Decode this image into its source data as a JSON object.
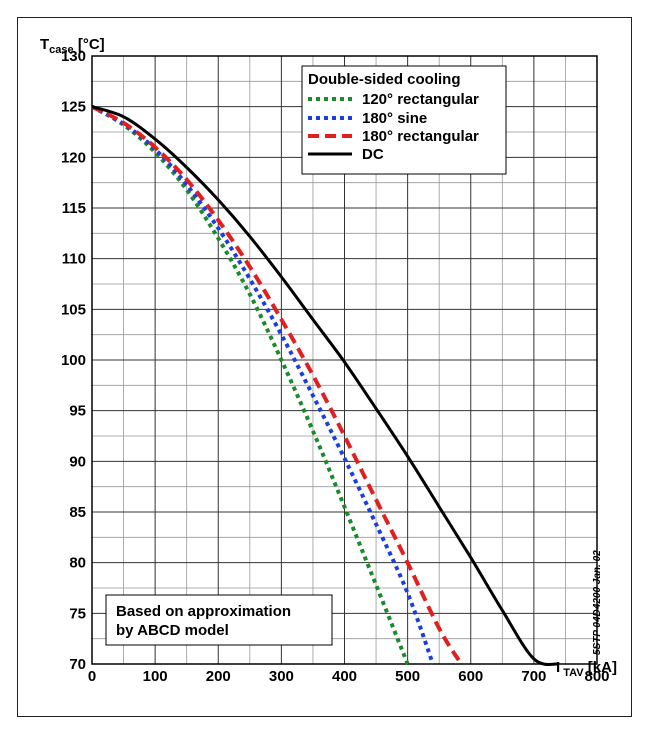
{
  "chart_data": {
    "type": "line",
    "y_axis_label": {
      "main": "T",
      "sub": "case",
      "unit": " [°C]"
    },
    "x_axis_label": {
      "main": "I",
      "sub": " TAV",
      "unit": " [kA]"
    },
    "xlim": [
      0,
      800
    ],
    "ylim": [
      70,
      130
    ],
    "grid": true,
    "x_minor_step": 50,
    "y_minor_step": 2.5,
    "x_ticks": [
      "0",
      "100",
      "200",
      "300",
      "400",
      "500",
      "600",
      "700",
      "800"
    ],
    "y_ticks": [
      "130",
      "125",
      "120",
      "115",
      "110",
      "105",
      "100",
      "95",
      "90",
      "85",
      "80",
      "75",
      "70"
    ],
    "legend": {
      "position": "top-right",
      "title": "Double-sided cooling",
      "entries": [
        "120° rectangular",
        "180° sine",
        "180° rectangular",
        "DC"
      ]
    },
    "series": [
      {
        "name": "120° rectangular",
        "color": "#1a8a2a",
        "dash": "dotted",
        "points": [
          [
            0,
            125
          ],
          [
            50,
            123.2
          ],
          [
            100,
            120.5
          ],
          [
            150,
            116.8
          ],
          [
            200,
            112
          ],
          [
            250,
            106.5
          ],
          [
            300,
            100
          ],
          [
            350,
            93
          ],
          [
            400,
            85.5
          ],
          [
            450,
            77.8
          ],
          [
            500,
            70
          ]
        ]
      },
      {
        "name": "180° sine",
        "color": "#1a3ee0",
        "dash": "dotted",
        "points": [
          [
            0,
            125
          ],
          [
            50,
            123.3
          ],
          [
            100,
            120.8
          ],
          [
            150,
            117.3
          ],
          [
            200,
            113
          ],
          [
            250,
            108
          ],
          [
            300,
            102.5
          ],
          [
            350,
            96.5
          ],
          [
            400,
            90.3
          ],
          [
            450,
            83.8
          ],
          [
            500,
            77
          ],
          [
            540,
            70
          ]
        ]
      },
      {
        "name": "180° rectangular",
        "color": "#e02020",
        "dash": "dashed",
        "points": [
          [
            0,
            125
          ],
          [
            50,
            123.4
          ],
          [
            100,
            121
          ],
          [
            150,
            117.8
          ],
          [
            200,
            113.8
          ],
          [
            250,
            109.2
          ],
          [
            300,
            104
          ],
          [
            350,
            98.5
          ],
          [
            400,
            92.5
          ],
          [
            450,
            86.2
          ],
          [
            500,
            80
          ],
          [
            550,
            73.5
          ],
          [
            585,
            70
          ]
        ]
      },
      {
        "name": "DC",
        "color": "#000000",
        "dash": "solid",
        "points": [
          [
            0,
            125
          ],
          [
            50,
            124
          ],
          [
            100,
            121.8
          ],
          [
            150,
            119
          ],
          [
            200,
            115.8
          ],
          [
            250,
            112.2
          ],
          [
            300,
            108.2
          ],
          [
            350,
            104
          ],
          [
            400,
            99.8
          ],
          [
            450,
            95.2
          ],
          [
            500,
            90.5
          ],
          [
            550,
            85.5
          ],
          [
            600,
            80.5
          ],
          [
            650,
            75.3
          ],
          [
            700,
            70.5
          ],
          [
            740,
            70
          ]
        ]
      }
    ],
    "annotations": [
      "Based on approximation",
      "by ABCD model"
    ],
    "side_code": "5STP 04D4200 Jan. 02"
  }
}
